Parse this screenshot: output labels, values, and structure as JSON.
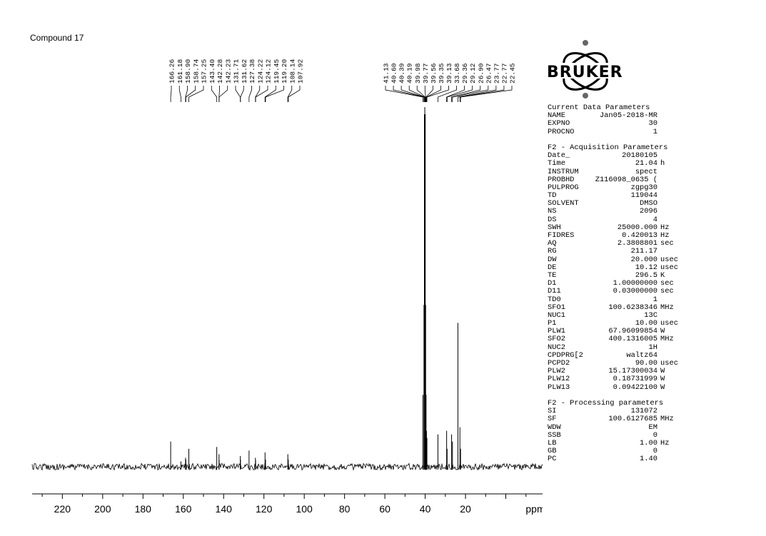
{
  "title": "Compound 17",
  "chart_data": {
    "type": "line",
    "xlabel": "ppm",
    "xlim": [
      235,
      -20
    ],
    "x_ticks": [
      220,
      200,
      180,
      160,
      140,
      120,
      100,
      80,
      60,
      40,
      20
    ],
    "peak_labels": [
      "166.26",
      "161.18",
      "158.90",
      "158.74",
      "157.25",
      "143.40",
      "142.28",
      "142.23",
      "131.71",
      "131.62",
      "127.38",
      "124.22",
      "124.12",
      "119.45",
      "119.20",
      "108.14",
      "107.92",
      "41.13",
      "40.60",
      "40.39",
      "40.19",
      "39.98",
      "39.77",
      "39.56",
      "39.35",
      "39.13",
      "33.68",
      "29.36",
      "29.12",
      "26.90",
      "26.47",
      "23.77",
      "22.77",
      "22.45"
    ],
    "peaks": [
      {
        "ppm": 166.26,
        "height": 0.07
      },
      {
        "ppm": 161.18,
        "height": 0.015
      },
      {
        "ppm": 158.9,
        "height": 0.025
      },
      {
        "ppm": 158.74,
        "height": 0.02
      },
      {
        "ppm": 157.25,
        "height": 0.05
      },
      {
        "ppm": 143.4,
        "height": 0.055
      },
      {
        "ppm": 142.28,
        "height": 0.035
      },
      {
        "ppm": 142.23,
        "height": 0.02
      },
      {
        "ppm": 131.71,
        "height": 0.03
      },
      {
        "ppm": 131.62,
        "height": 0.02
      },
      {
        "ppm": 127.38,
        "height": 0.045
      },
      {
        "ppm": 124.22,
        "height": 0.025
      },
      {
        "ppm": 124.12,
        "height": 0.018
      },
      {
        "ppm": 119.45,
        "height": 0.04
      },
      {
        "ppm": 119.2,
        "height": 0.02
      },
      {
        "ppm": 108.14,
        "height": 0.035
      },
      {
        "ppm": 107.92,
        "height": 0.02
      },
      {
        "ppm": 41.13,
        "height": 0.2
      },
      {
        "ppm": 40.6,
        "height": 0.45
      },
      {
        "ppm": 40.39,
        "height": 0.98
      },
      {
        "ppm": 40.19,
        "height": 1.0
      },
      {
        "ppm": 39.98,
        "height": 0.98
      },
      {
        "ppm": 39.77,
        "height": 0.45
      },
      {
        "ppm": 39.56,
        "height": 0.2
      },
      {
        "ppm": 39.35,
        "height": 0.1
      },
      {
        "ppm": 39.13,
        "height": 0.08
      },
      {
        "ppm": 33.68,
        "height": 0.09
      },
      {
        "ppm": 29.36,
        "height": 0.1
      },
      {
        "ppm": 29.12,
        "height": 0.05
      },
      {
        "ppm": 26.9,
        "height": 0.09
      },
      {
        "ppm": 26.47,
        "height": 0.07
      },
      {
        "ppm": 23.77,
        "height": 0.4
      },
      {
        "ppm": 22.77,
        "height": 0.11
      },
      {
        "ppm": 22.45,
        "height": 0.05
      }
    ]
  },
  "parameters": {
    "current": {
      "heading": "Current Data Parameters",
      "rows": [
        {
          "k": "NAME",
          "v": "Jan05-2018-MR",
          "u": ""
        },
        {
          "k": "EXPNO",
          "v": "30",
          "u": ""
        },
        {
          "k": "PROCNO",
          "v": "1",
          "u": ""
        }
      ]
    },
    "acquisition": {
      "heading": "F2 - Acquisition Parameters",
      "rows": [
        {
          "k": "Date_",
          "v": "20180105",
          "u": ""
        },
        {
          "k": "Time",
          "v": "21.04",
          "u": "h"
        },
        {
          "k": "INSTRUM",
          "v": "spect",
          "u": ""
        },
        {
          "k": "PROBHD",
          "v": "Z116098_0635 (",
          "u": ""
        },
        {
          "k": "PULPROG",
          "v": "zgpg30",
          "u": ""
        },
        {
          "k": "TD",
          "v": "119044",
          "u": ""
        },
        {
          "k": "SOLVENT",
          "v": "DMSO",
          "u": ""
        },
        {
          "k": "NS",
          "v": "2096",
          "u": ""
        },
        {
          "k": "DS",
          "v": "4",
          "u": ""
        },
        {
          "k": "SWH",
          "v": "25000.000",
          "u": "Hz"
        },
        {
          "k": "FIDRES",
          "v": "0.420013",
          "u": "Hz"
        },
        {
          "k": "AQ",
          "v": "2.3808801",
          "u": "sec"
        },
        {
          "k": "RG",
          "v": "211.17",
          "u": ""
        },
        {
          "k": "DW",
          "v": "20.000",
          "u": "usec"
        },
        {
          "k": "DE",
          "v": "10.12",
          "u": "usec"
        },
        {
          "k": "TE",
          "v": "296.5",
          "u": "K"
        },
        {
          "k": "D1",
          "v": "1.00000000",
          "u": "sec"
        },
        {
          "k": "D11",
          "v": "0.03000000",
          "u": "sec"
        },
        {
          "k": "TD0",
          "v": "1",
          "u": ""
        },
        {
          "k": "SFO1",
          "v": "100.6238346",
          "u": "MHz"
        },
        {
          "k": "NUC1",
          "v": "13C",
          "u": ""
        },
        {
          "k": "P1",
          "v": "10.00",
          "u": "usec"
        },
        {
          "k": "PLW1",
          "v": "67.96099854",
          "u": "W"
        },
        {
          "k": "SFO2",
          "v": "400.1316005",
          "u": "MHz"
        },
        {
          "k": "NUC2",
          "v": "1H",
          "u": ""
        },
        {
          "k": "CPDPRG[2",
          "v": "waltz64",
          "u": ""
        },
        {
          "k": "PCPD2",
          "v": "90.00",
          "u": "usec"
        },
        {
          "k": "PLW2",
          "v": "15.17300034",
          "u": "W"
        },
        {
          "k": "PLW12",
          "v": "0.18731999",
          "u": "W"
        },
        {
          "k": "PLW13",
          "v": "0.09422100",
          "u": "W"
        }
      ]
    },
    "processing": {
      "heading": "F2 - Processing parameters",
      "rows": [
        {
          "k": "SI",
          "v": "131072",
          "u": ""
        },
        {
          "k": "SF",
          "v": "100.6127685",
          "u": "MHz"
        },
        {
          "k": "WDW",
          "v": "EM",
          "u": ""
        },
        {
          "k": "SSB",
          "v": "0",
          "u": ""
        },
        {
          "k": "LB",
          "v": "1.00",
          "u": "Hz"
        },
        {
          "k": "GB",
          "v": "0",
          "u": ""
        },
        {
          "k": "PC",
          "v": "1.40",
          "u": ""
        }
      ]
    }
  },
  "logo": {
    "text": "BRUKER",
    "name": "bruker-logo-icon"
  }
}
